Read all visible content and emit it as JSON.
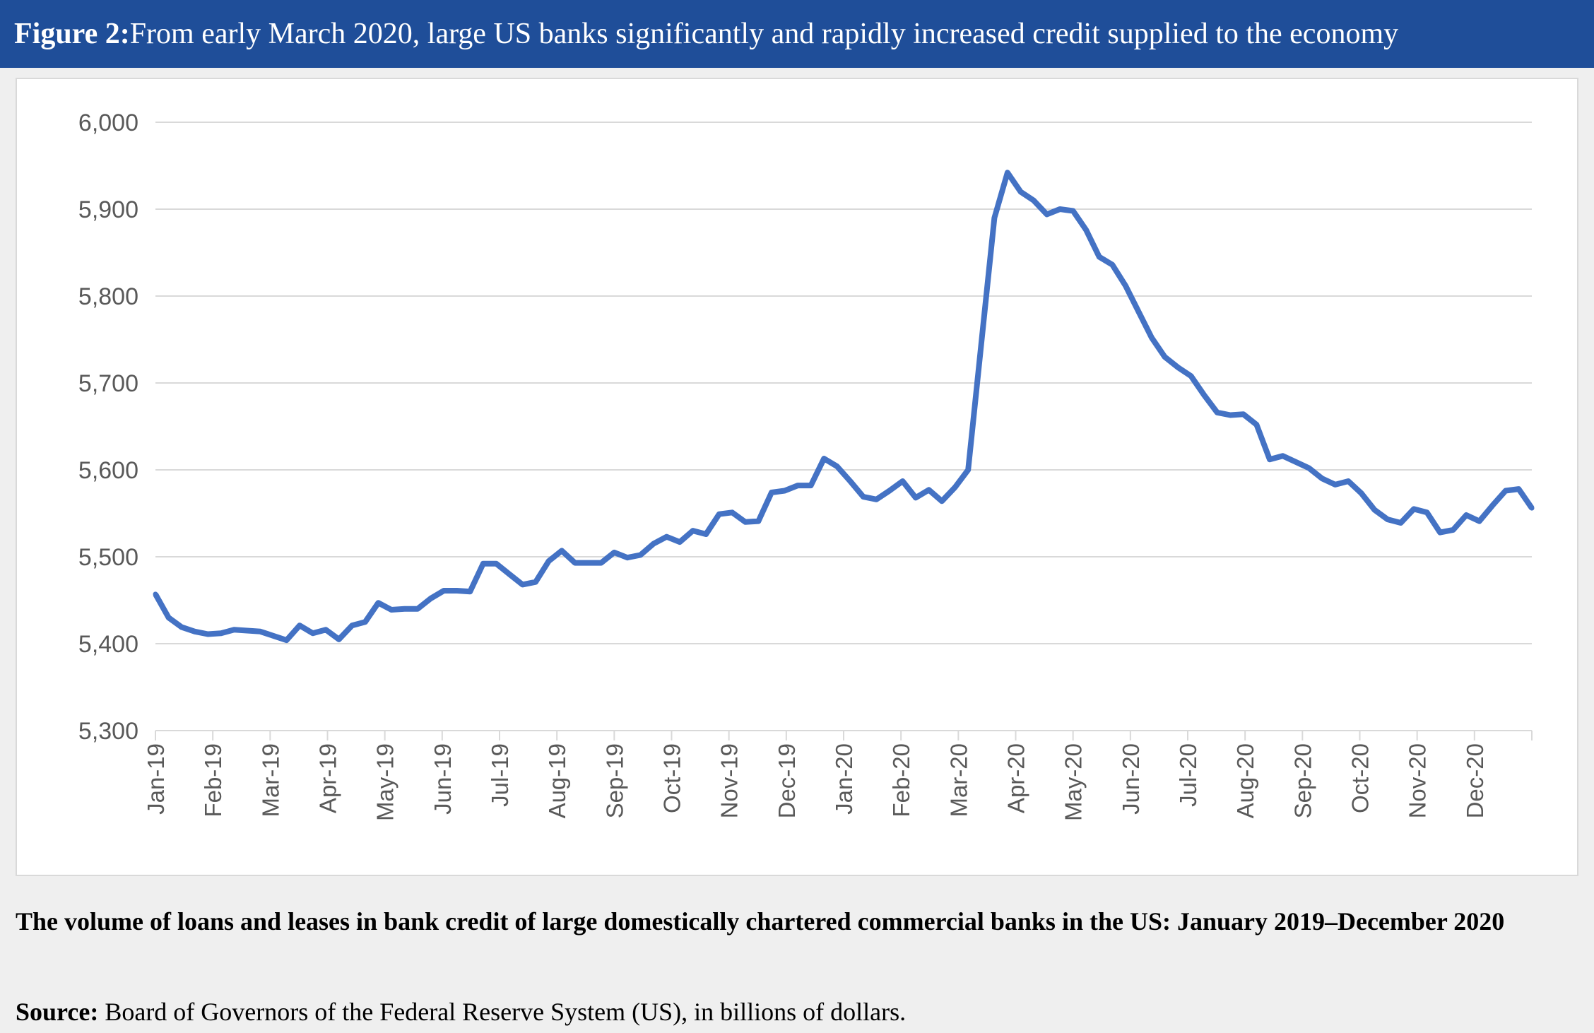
{
  "figure": {
    "label": "Figure 2:",
    "title": " From early March 2020, large US banks significantly and rapidly increased credit supplied to the economy",
    "caption": "The volume of loans and leases in bank credit of large domestically chartered commercial banks in the US: January 2019–December 2020",
    "source_label": "Source:",
    "source_text": " Board of Governors of the Federal Reserve System (US), in billions of dollars."
  },
  "colors": {
    "title_bar": "#1f4e99",
    "line": "#4472c4",
    "grid": "#d9d9d9"
  },
  "chart_data": {
    "type": "line",
    "title": "",
    "xlabel": "",
    "ylabel": "",
    "ylim": [
      5300,
      6000
    ],
    "yticks": [
      5300,
      5400,
      5500,
      5600,
      5700,
      5800,
      5900,
      6000
    ],
    "ytick_labels": [
      "5,300",
      "5,400",
      "5,500",
      "5,600",
      "5,700",
      "5,800",
      "5,900",
      "6,000"
    ],
    "xtick_labels": [
      "Jan-19",
      "Feb-19",
      "Mar-19",
      "Apr-19",
      "May-19",
      "Jun-19",
      "Jul-19",
      "Aug-19",
      "Sep-19",
      "Oct-19",
      "Nov-19",
      "Dec-19",
      "Jan-20",
      "Feb-20",
      "Mar-20",
      "Apr-20",
      "May-20",
      "Jun-20",
      "Jul-20",
      "Aug-20",
      "Sep-20",
      "Oct-20",
      "Nov-20",
      "Dec-20"
    ],
    "grid": true,
    "legend": "none",
    "frequency": "weekly",
    "series": [
      {
        "name": "",
        "values": [
          5457,
          5430,
          5419,
          5414,
          5411,
          5412,
          5416,
          5415,
          5414,
          5409,
          5404,
          5421,
          5412,
          5416,
          5405,
          5421,
          5425,
          5447,
          5439,
          5440,
          5440,
          5452,
          5461,
          5461,
          5460,
          5492,
          5492,
          5480,
          5468,
          5471,
          5495,
          5507,
          5493,
          5493,
          5493,
          5505,
          5499,
          5502,
          5515,
          5523,
          5517,
          5530,
          5526,
          5549,
          5551,
          5540,
          5541,
          5574,
          5576,
          5582,
          5582,
          5613,
          5604,
          5587,
          5569,
          5566,
          5576,
          5587,
          5568,
          5577,
          5564,
          5580,
          5600,
          5745,
          5890,
          5942,
          5920,
          5910,
          5894,
          5900,
          5898,
          5876,
          5845,
          5836,
          5812,
          5782,
          5752,
          5730,
          5718,
          5708,
          5686,
          5666,
          5663,
          5664,
          5652,
          5612,
          5616,
          5609,
          5602,
          5590,
          5583,
          5587,
          5573,
          5554,
          5543,
          5539,
          5555,
          5551,
          5528,
          5531,
          5548,
          5541,
          5559,
          5576,
          5578,
          5556
        ]
      }
    ]
  }
}
